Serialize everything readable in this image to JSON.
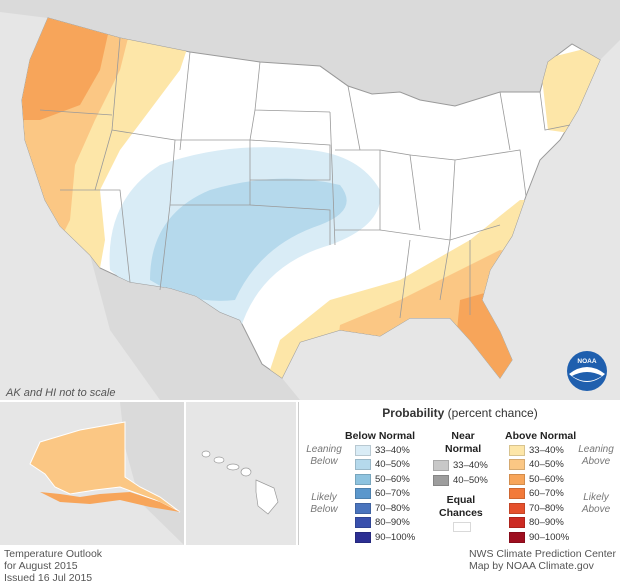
{
  "map": {
    "scale_note": "AK and HI not to scale",
    "logo": {
      "icon": "noaa-logo-icon",
      "text": "NOAA"
    }
  },
  "legend": {
    "title": "Probability",
    "subtitle": "(percent chance)",
    "below": {
      "heading": "Below Normal",
      "leaning": [
        "Leaning",
        "Below"
      ],
      "likely": [
        "Likely",
        "Below"
      ],
      "items": [
        {
          "label": "33–40%",
          "color": "#d9ecf6"
        },
        {
          "label": "40–50%",
          "color": "#b5d9ec"
        },
        {
          "label": "50–60%",
          "color": "#8ec3df"
        },
        {
          "label": "60–70%",
          "color": "#5b97cc"
        },
        {
          "label": "70–80%",
          "color": "#4a74bd"
        },
        {
          "label": "80–90%",
          "color": "#3950ad"
        },
        {
          "label": "90–100%",
          "color": "#2c2f93"
        }
      ]
    },
    "near": {
      "heading": [
        "Near",
        "Normal"
      ],
      "items": [
        {
          "label": "33–40%",
          "color": "#c8c8c8"
        },
        {
          "label": "40–50%",
          "color": "#9d9d9d"
        }
      ],
      "equal": [
        "Equal",
        "Chances"
      ],
      "equal_color": "#ffffff"
    },
    "above": {
      "heading": "Above Normal",
      "leaning": [
        "Leaning",
        "Above"
      ],
      "likely": [
        "Likely",
        "Above"
      ],
      "items": [
        {
          "label": "33–40%",
          "color": "#fde6a8"
        },
        {
          "label": "40–50%",
          "color": "#fbc784"
        },
        {
          "label": "50–60%",
          "color": "#f7a55a"
        },
        {
          "label": "60–70%",
          "color": "#f27a3a"
        },
        {
          "label": "70–80%",
          "color": "#e5502c"
        },
        {
          "label": "80–90%",
          "color": "#cc2a22"
        },
        {
          "label": "90–100%",
          "color": "#9e0e1f"
        }
      ]
    }
  },
  "footer": {
    "left": [
      "Temperature Outlook",
      "for August 2015",
      "Issued 16 Jul 2015"
    ],
    "right": [
      "NWS Climate Prediction Center",
      "Map by NOAA Climate.gov"
    ]
  }
}
